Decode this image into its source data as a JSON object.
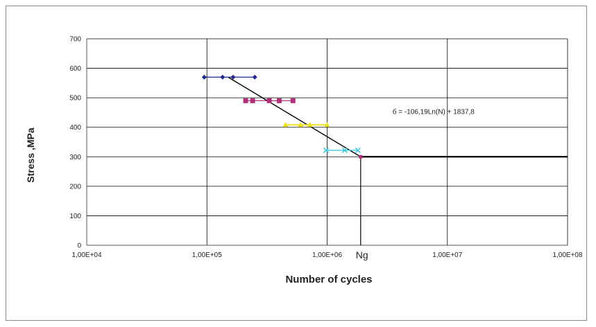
{
  "chart_data": {
    "type": "scatter",
    "title": "",
    "xlabel": "Number of cycles",
    "ylabel": "Stress ,MPa",
    "x_scale": "log",
    "xlim": [
      10000,
      100000000
    ],
    "ylim": [
      0,
      700
    ],
    "x_ticks": [
      10000,
      100000,
      1000000,
      10000000,
      100000000
    ],
    "x_tick_labels": [
      "1,00E+04",
      "1,00E+05",
      "1,00E+06",
      "1,00E+07",
      "1,00E+08"
    ],
    "y_ticks": [
      0,
      100,
      200,
      300,
      400,
      500,
      600,
      700
    ],
    "y_tick_labels": [
      "0",
      "100",
      "200",
      "300",
      "400",
      "500",
      "600",
      "700"
    ],
    "grid": true,
    "legend": "none",
    "series": [
      {
        "color": "#1f2a8c",
        "marker": "diamond",
        "stress": 570,
        "x": [
          95000,
          135000,
          165000,
          250000
        ],
        "y": [
          570,
          570,
          570,
          570
        ]
      },
      {
        "color": "#b0307a",
        "marker": "square",
        "stress": 490,
        "x": [
          210000,
          240000,
          330000,
          400000,
          520000
        ],
        "y": [
          490,
          490,
          490,
          490,
          490
        ]
      },
      {
        "color": "#e8e020",
        "marker": "triangle",
        "stress": 408,
        "x": [
          450000,
          600000,
          720000,
          1000000
        ],
        "y": [
          408,
          408,
          408,
          408
        ]
      },
      {
        "color": "#40c8d8",
        "marker": "x",
        "stress": 322,
        "x": [
          980000,
          1400000,
          1800000
        ],
        "y": [
          322,
          322,
          322
        ]
      }
    ],
    "fit_line": {
      "x": [
        150000,
        1900000
      ],
      "y": [
        570,
        300
      ],
      "color": "#000000"
    },
    "endurance_line": {
      "x": [
        1900000,
        100000000
      ],
      "y": [
        300,
        300
      ],
      "color": "#000000"
    },
    "ng_marker": {
      "x": 1900000,
      "y": 300,
      "color": "#b0307a"
    },
    "annotations": [
      {
        "text": "б = -106,19Ln(N) + 1837,8",
        "x": 3500000,
        "y": 445
      },
      {
        "text": "Ng",
        "x": 1900000,
        "y": -25
      }
    ]
  }
}
